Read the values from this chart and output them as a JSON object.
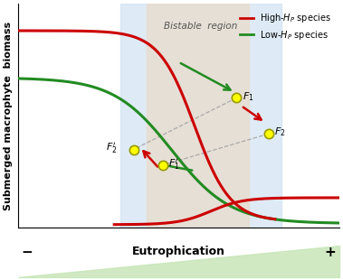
{
  "xlabel": "Eutrophication",
  "ylabel": "Submerged macrophyte  biomass",
  "legend_high": "High-$H_P$ species",
  "legend_low": "Low-$H_P$ species",
  "bistable_label": "Bistable  region",
  "color_high": "#cc0000",
  "color_low": "#228B22",
  "bistable_blue_color": "#c8dff0",
  "bistable_tan_color": "#e8ddd0",
  "dot_color": "#ffff00",
  "dot_edgecolor": "#999900",
  "dashed_color": "#aaaaaa",
  "bg_color": "#ffffff",
  "minus_label": "−",
  "plus_label": "+",
  "triangle_color": "#c8e6b8",
  "xlim": [
    0,
    10
  ],
  "ylim": [
    0,
    10
  ],
  "bist_blue_x1": 3.2,
  "bist_blue_x2": 8.2,
  "bist_tan_x1": 4.0,
  "bist_tan_x2": 7.2,
  "xF1": 6.8,
  "yF1": 5.8,
  "xF2": 7.8,
  "yF2": 4.2,
  "xF2p": 3.6,
  "yF2p": 3.5,
  "xF1p": 4.5,
  "yF1p": 2.8
}
